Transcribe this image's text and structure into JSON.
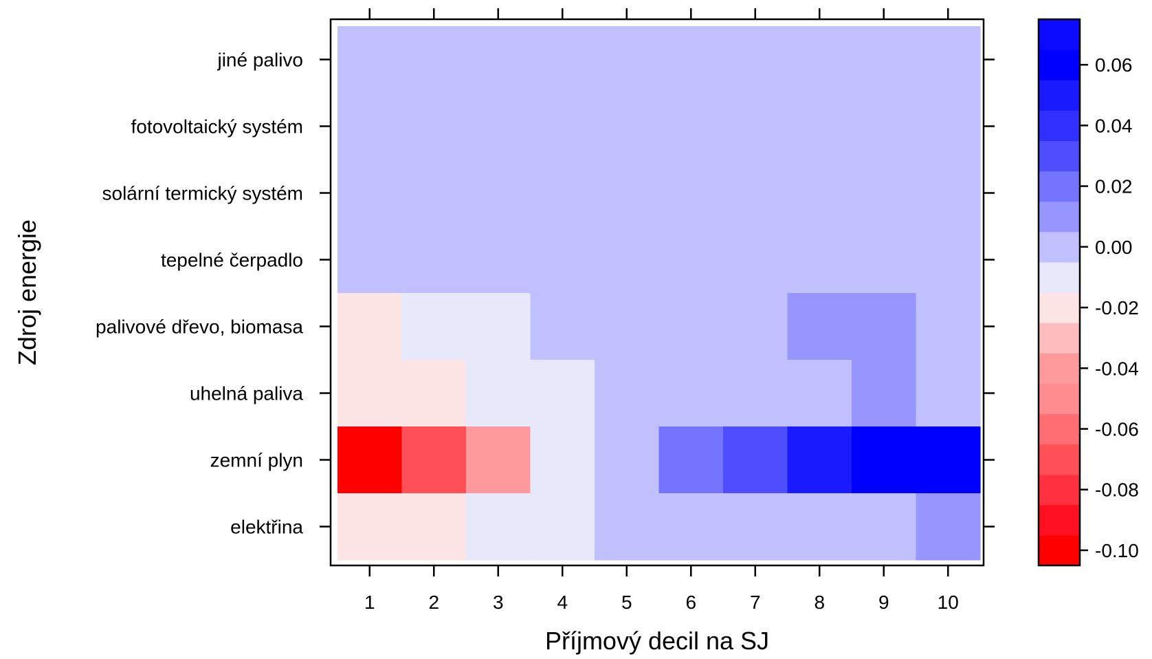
{
  "chart_data": {
    "type": "heatmap",
    "xlabel": "Příjmový decil na SJ",
    "ylabel": "Zdroj energie",
    "x_categories": [
      "1",
      "2",
      "3",
      "4",
      "5",
      "6",
      "7",
      "8",
      "9",
      "10"
    ],
    "y_categories": [
      "jiné palivo",
      "fotovoltaický systém",
      "solární termický systém",
      "tepelné čerpadlo",
      "palivové dřevo, biomasa",
      "uhelná paliva",
      "zemní plyn",
      "elektřina"
    ],
    "values": [
      [
        0,
        0,
        0,
        0,
        0,
        0,
        0,
        0,
        0,
        0
      ],
      [
        0,
        0,
        0,
        0,
        0,
        0,
        0,
        0,
        0,
        0
      ],
      [
        0,
        0,
        0,
        0,
        0,
        0,
        0,
        0,
        0,
        0
      ],
      [
        0,
        0,
        0,
        0,
        0,
        0,
        0,
        0,
        0,
        0
      ],
      [
        -0.015,
        -0.005,
        -0.005,
        0.005,
        0.005,
        0.005,
        0.005,
        0.015,
        0.015,
        0.005
      ],
      [
        -0.015,
        -0.015,
        -0.005,
        -0.005,
        0.005,
        0.005,
        0.005,
        0.005,
        0.015,
        0.005
      ],
      [
        -0.1,
        -0.065,
        -0.035,
        -0.005,
        0.005,
        0.025,
        0.035,
        0.055,
        0.065,
        0.075
      ],
      [
        -0.015,
        -0.015,
        -0.005,
        -0.005,
        0.005,
        0.005,
        0.005,
        0.005,
        0.005,
        0.015
      ]
    ],
    "colorbar": {
      "ticks": [
        0.06,
        0.04,
        0.02,
        0.0,
        -0.02,
        -0.04,
        -0.06,
        -0.08,
        -0.1
      ],
      "tick_labels": [
        "0.06",
        "0.04",
        "0.02",
        "0.00",
        "-0.02",
        "-0.04",
        "-0.06",
        "-0.08",
        "-0.10"
      ],
      "range": [
        -0.105,
        0.075
      ],
      "step": 0.01
    },
    "colors": {
      "negative_max": "#ff0000",
      "positive_max": "#0000ff",
      "neutral": "#ffffff"
    }
  }
}
